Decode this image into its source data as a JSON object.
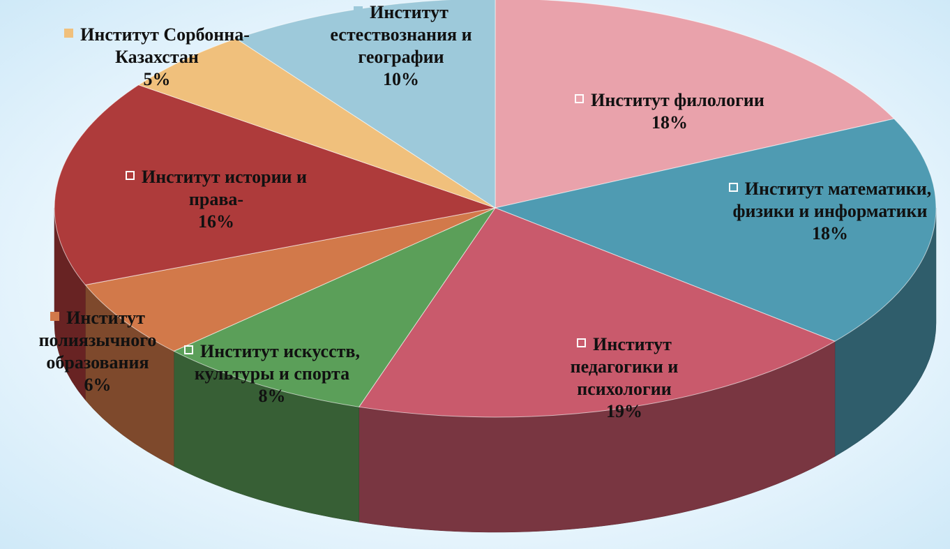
{
  "chart_data": {
    "type": "pie3d",
    "categories": [
      "Институт филологии",
      "Институт математики, физики и информатики",
      "Институт педагогики и психологии",
      "Институт искусств, культуры и спорта",
      "Институт полиязычного образования",
      "Институт истории и права-",
      "Институт Сорбонна-Казахстан",
      "Институт естествознания и географии"
    ],
    "values": [
      18,
      18,
      19,
      8,
      6,
      16,
      5,
      10
    ],
    "value_labels": [
      "18%",
      "18%",
      "19%",
      "8%",
      "6%",
      "16%",
      "5%",
      "10%"
    ],
    "colors": [
      "#e9a2ab",
      "#4f9bb2",
      "#c95a6c",
      "#5b9f59",
      "#d2794a",
      "#ae3b3b",
      "#f0c07c",
      "#9dc9da"
    ]
  }
}
